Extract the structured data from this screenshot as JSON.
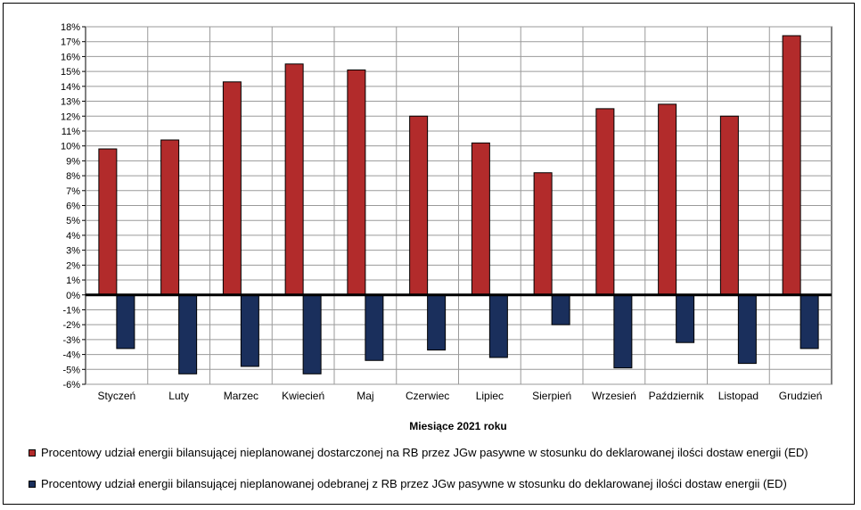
{
  "chart_data": {
    "type": "bar",
    "title": "",
    "xlabel": "Miesiące 2021  roku",
    "ylabel": "",
    "ylim": [
      -6,
      18
    ],
    "ytick_step": 1,
    "ytick_suffix": "%",
    "grid": true,
    "legend_position": "bottom",
    "categories": [
      "Styczeń",
      "Luty",
      "Marzec",
      "Kwiecień",
      "Maj",
      "Czerwiec",
      "Lipiec",
      "Sierpień",
      "Wrzesień",
      "Październik",
      "Listopad",
      "Grudzień"
    ],
    "series": [
      {
        "name": "Procentowy udział energii bilansującej nieplanowanej dostarczonej na RB przez JGw pasywne w stosunku do deklarowanej ilości dostaw energii (ED)",
        "color": "#b22b2b",
        "values": [
          9.8,
          10.4,
          14.3,
          15.5,
          15.1,
          12.0,
          10.2,
          8.2,
          12.5,
          12.8,
          12.0,
          17.4
        ]
      },
      {
        "name": "Procentowy udział energii bilansującej nieplanowanej odebranej z RB przez JGw pasywne w stosunku do deklarowanej ilości dostaw energii (ED)",
        "color": "#1a2f5c",
        "values": [
          -3.6,
          -5.3,
          -4.8,
          -5.3,
          -4.4,
          -3.7,
          -4.2,
          -2.0,
          -4.9,
          -3.2,
          -4.6,
          -3.6
        ]
      }
    ]
  }
}
